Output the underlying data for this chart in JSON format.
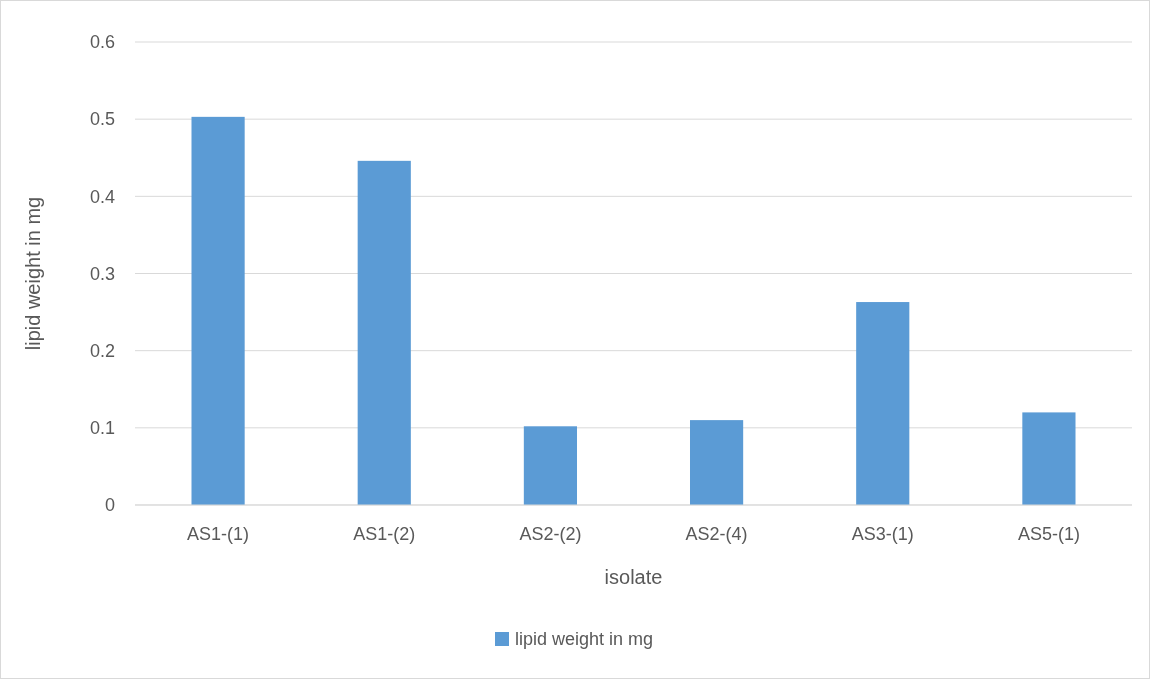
{
  "chart_data": {
    "type": "bar",
    "xlabel": "isolate",
    "ylabel": "lipid weight in mg",
    "categories": [
      "AS1-(1)",
      "AS1-(2)",
      "AS2-(2)",
      "AS2-(4)",
      "AS3-(1)",
      "AS5-(1)"
    ],
    "series": [
      {
        "name": "lipid weight in mg",
        "color": "#5b9bd5",
        "values": [
          0.503,
          0.446,
          0.102,
          0.11,
          0.263,
          0.12
        ]
      }
    ],
    "ylim": [
      0,
      0.6
    ],
    "yticks": [
      0,
      0.1,
      0.2,
      0.3,
      0.4,
      0.5,
      0.6
    ],
    "grid": "y",
    "legend": "bottom"
  }
}
